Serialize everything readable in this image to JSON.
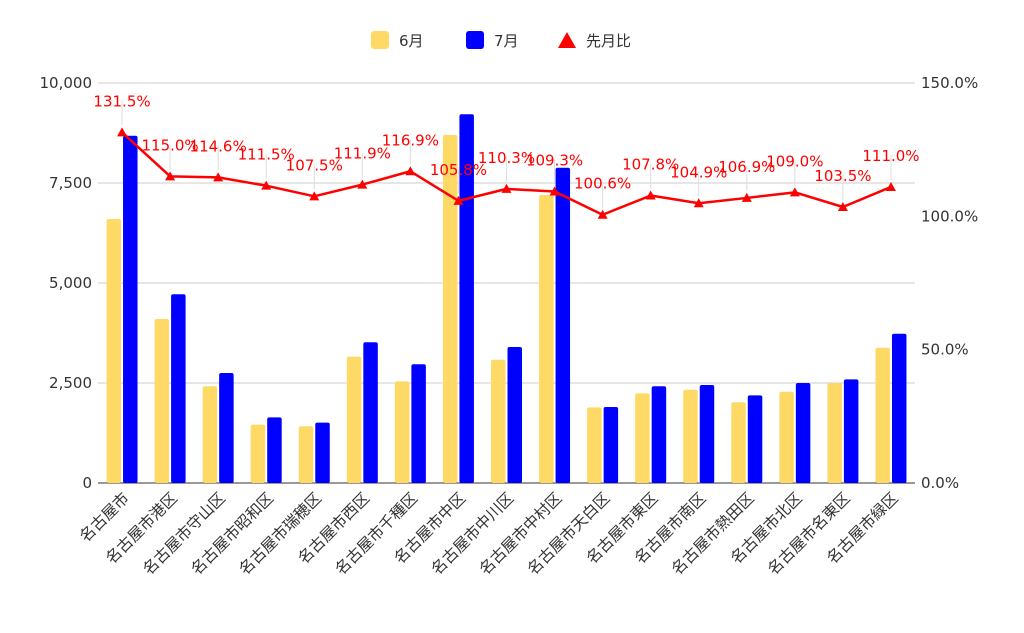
{
  "chart_data": {
    "type": "bar",
    "categories": [
      "名古屋市",
      "名古屋市港区",
      "名古屋市守山区",
      "名古屋市昭和区",
      "名古屋市瑞穂区",
      "名古屋市西区",
      "名古屋市千種区",
      "名古屋市中区",
      "名古屋市中川区",
      "名古屋市中村区",
      "名古屋市天白区",
      "名古屋市東区",
      "名古屋市南区",
      "名古屋市熱田区",
      "名古屋市北区",
      "名古屋市名東区",
      "名古屋市緑区"
    ],
    "series": [
      {
        "name": "6月",
        "kind": "bar",
        "axis": "left",
        "color": "#ffd966",
        "values": [
          6600,
          4100,
          2420,
          1460,
          1420,
          3160,
          2540,
          8700,
          3080,
          7200,
          1890,
          2240,
          2330,
          2020,
          2280,
          2500,
          3380
        ]
      },
      {
        "name": "7月",
        "kind": "bar",
        "axis": "left",
        "color": "#0000ff",
        "values": [
          8680,
          4720,
          2750,
          1640,
          1510,
          3520,
          2970,
          9220,
          3400,
          7880,
          1900,
          2420,
          2450,
          2190,
          2500,
          2590,
          3730
        ]
      },
      {
        "name": "先月比",
        "kind": "line",
        "axis": "right",
        "color": "#ff0000",
        "values": [
          131.5,
          115.0,
          114.6,
          111.5,
          107.5,
          111.9,
          116.9,
          105.8,
          110.3,
          109.3,
          100.6,
          107.8,
          104.9,
          106.9,
          109.0,
          103.5,
          111.0
        ],
        "labels": [
          "131.5%",
          "115.0%",
          "114.6%",
          "111.5%",
          "107.5%",
          "111.9%",
          "116.9%",
          "105.8%",
          "110.3%",
          "109.3%",
          "100.6%",
          "107.8%",
          "104.9%",
          "106.9%",
          "109.0%",
          "103.5%",
          "111.0%"
        ]
      }
    ],
    "y_left": {
      "min": 0,
      "max": 10000,
      "ticks": [
        0,
        2500,
        5000,
        7500,
        10000
      ],
      "tick_labels": [
        "0",
        "2,500",
        "5,000",
        "7,500",
        "10,000"
      ]
    },
    "y_right": {
      "min": 0,
      "max": 150,
      "ticks": [
        0,
        50,
        100,
        150
      ],
      "tick_labels": [
        "0.0%",
        "50.0%",
        "100.0%",
        "150.0%"
      ]
    },
    "grid": true,
    "legend_position": "top-center",
    "title": "",
    "xlabel": "",
    "ylabel": ""
  },
  "legend": [
    {
      "label": "6月",
      "color": "#ffd966",
      "shape": "square"
    },
    {
      "label": "7月",
      "color": "#0000ff",
      "shape": "square"
    },
    {
      "label": "先月比",
      "color": "#ff0000",
      "shape": "triangle"
    }
  ]
}
